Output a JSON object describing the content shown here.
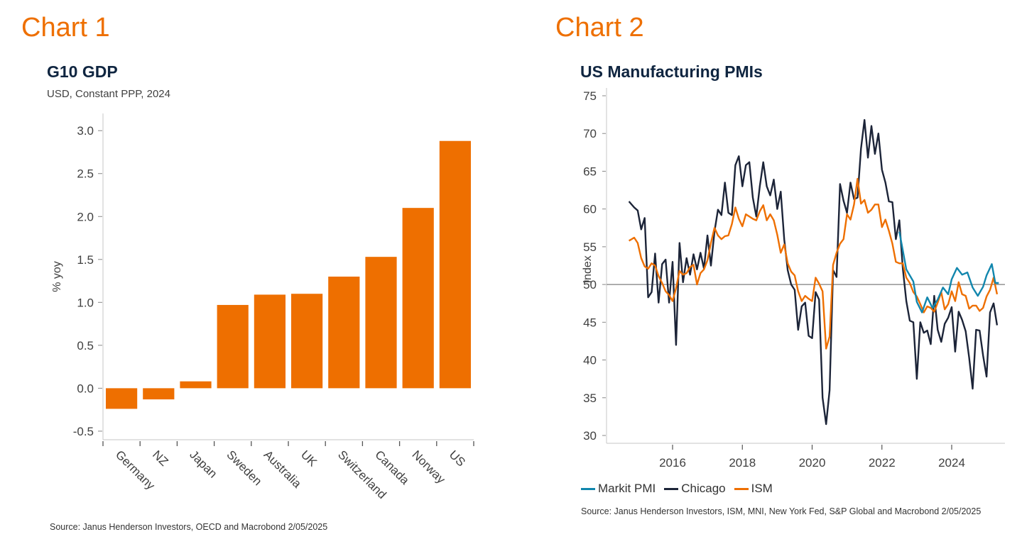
{
  "labels": {
    "chart1": "Chart 1",
    "chart2": "Chart 2"
  },
  "colors": {
    "accent": "#ee6f00",
    "title": "#0f2540",
    "markit": "#1186ad",
    "chicago": "#1c2438",
    "ism": "#ee6f00",
    "axis": "#d0d0d0",
    "zero_line": "#7f7f7f"
  },
  "chart_data": [
    {
      "type": "bar",
      "title": "G10 GDP",
      "subtitle": "USD, Constant PPP, 2024",
      "xlabel": "",
      "ylabel": "% yoy",
      "ylim": [
        -0.6,
        3.2
      ],
      "yticks": [
        -0.5,
        0.0,
        0.5,
        1.0,
        1.5,
        2.0,
        2.5,
        3.0
      ],
      "ytick_labels": [
        "-0.5",
        "0.0",
        "0.5",
        "1.0",
        "1.5",
        "2.0",
        "2.5",
        "3.0"
      ],
      "categories": [
        "Germany",
        "NZ",
        "Japan",
        "Sweden",
        "Australia",
        "UK",
        "Switzerland",
        "Canada",
        "Norway",
        "US"
      ],
      "values": [
        -0.24,
        -0.13,
        0.08,
        0.97,
        1.09,
        1.1,
        1.3,
        1.53,
        2.1,
        2.88
      ],
      "grid": false,
      "legend": "none",
      "source": "Source: Janus Henderson Investors, OECD and Macrobond  2/05/2025"
    },
    {
      "type": "line",
      "title": "US Manufacturing PMIs",
      "xlabel": "",
      "ylabel": "Index",
      "ylim": [
        29,
        76
      ],
      "xlim": [
        2014.75,
        2025.6
      ],
      "yticks": [
        30,
        35,
        40,
        45,
        50,
        55,
        60,
        65,
        70,
        75
      ],
      "xticks": [
        2016,
        2018,
        2020,
        2022,
        2024
      ],
      "xtick_labels": [
        "2016",
        "2018",
        "2020",
        "2022",
        "2024"
      ],
      "reference_line": 50,
      "grid": false,
      "legend": "bottom-left",
      "series": [
        {
          "name": "Markit PMI",
          "color": "#1186ad",
          "x": [
            2022.5,
            2022.7,
            2022.9,
            2023.0,
            2023.15,
            2023.3,
            2023.45,
            2023.6,
            2023.75,
            2023.9,
            2024.0,
            2024.15,
            2024.3,
            2024.45,
            2024.6,
            2024.75,
            2024.9,
            2025.0,
            2025.15,
            2025.25,
            2025.35
          ],
          "values": [
            57.0,
            52.0,
            50.4,
            47.7,
            46.3,
            48.3,
            46.9,
            48.0,
            49.6,
            48.7,
            50.7,
            52.2,
            51.3,
            51.6,
            49.6,
            48.5,
            49.7,
            51.2,
            52.7,
            50.2,
            50.2
          ]
        },
        {
          "name": "Chicago",
          "color": "#1c2438",
          "x": [
            2014.75,
            2014.9,
            2015.0,
            2015.1,
            2015.2,
            2015.3,
            2015.4,
            2015.5,
            2015.6,
            2015.7,
            2015.8,
            2015.9,
            2016.0,
            2016.1,
            2016.2,
            2016.3,
            2016.4,
            2016.5,
            2016.6,
            2016.7,
            2016.8,
            2016.9,
            2017.0,
            2017.1,
            2017.2,
            2017.3,
            2017.4,
            2017.5,
            2017.6,
            2017.7,
            2017.8,
            2017.9,
            2018.0,
            2018.1,
            2018.2,
            2018.3,
            2018.4,
            2018.5,
            2018.6,
            2018.7,
            2018.8,
            2018.9,
            2019.0,
            2019.1,
            2019.2,
            2019.3,
            2019.4,
            2019.5,
            2019.6,
            2019.7,
            2019.8,
            2019.9,
            2020.0,
            2020.1,
            2020.2,
            2020.3,
            2020.4,
            2020.5,
            2020.6,
            2020.7,
            2020.8,
            2020.9,
            2021.0,
            2021.1,
            2021.2,
            2021.3,
            2021.4,
            2021.5,
            2021.6,
            2021.7,
            2021.8,
            2021.9,
            2022.0,
            2022.1,
            2022.2,
            2022.3,
            2022.4,
            2022.5,
            2022.6,
            2022.7,
            2022.8,
            2022.9,
            2023.0,
            2023.1,
            2023.2,
            2023.3,
            2023.4,
            2023.5,
            2023.6,
            2023.7,
            2023.8,
            2023.9,
            2024.0,
            2024.1,
            2024.2,
            2024.3,
            2024.4,
            2024.5,
            2024.6,
            2024.7,
            2024.8,
            2024.9,
            2025.0,
            2025.1,
            2025.2,
            2025.3
          ],
          "values": [
            61.0,
            60.2,
            59.8,
            57.3,
            58.8,
            48.3,
            49.0,
            54.1,
            47.6,
            52.7,
            53.3,
            47.6,
            53.0,
            42.0,
            55.5,
            50.3,
            53.5,
            51.3,
            54.0,
            52.0,
            54.2,
            52.1,
            56.5,
            52.5,
            57.0,
            59.9,
            59.2,
            63.5,
            59.5,
            59.2,
            65.8,
            67.0,
            63.0,
            65.8,
            66.2,
            61.5,
            59.0,
            63.0,
            66.2,
            63.0,
            61.8,
            63.9,
            60.0,
            62.3,
            56.0,
            51.9,
            50.0,
            49.3,
            44.0,
            47.1,
            47.6,
            43.2,
            42.9,
            49.0,
            48.0,
            35.0,
            31.5,
            36.0,
            51.9,
            51.0,
            63.3,
            61.1,
            59.5,
            63.5,
            61.3,
            61.5,
            68.0,
            71.8,
            66.8,
            71.0,
            67.3,
            70.0,
            65.2,
            63.5,
            61.0,
            60.9,
            56.0,
            58.5,
            52.1,
            47.8,
            45.2,
            45.0,
            37.5,
            45.0,
            43.6,
            43.9,
            42.1,
            48.5,
            44.0,
            42.4,
            44.8,
            45.6,
            47.0,
            41.1,
            46.4,
            45.3,
            43.8,
            40.3,
            36.2,
            44.0,
            43.9,
            40.6,
            37.8,
            46.3,
            47.5,
            44.6
          ]
        },
        {
          "name": "ISM",
          "color": "#ee6f00",
          "x": [
            2014.75,
            2014.9,
            2015.0,
            2015.1,
            2015.2,
            2015.3,
            2015.4,
            2015.5,
            2015.6,
            2015.7,
            2015.8,
            2015.9,
            2016.0,
            2016.1,
            2016.2,
            2016.3,
            2016.4,
            2016.5,
            2016.6,
            2016.7,
            2016.8,
            2016.9,
            2017.0,
            2017.1,
            2017.2,
            2017.3,
            2017.4,
            2017.5,
            2017.6,
            2017.7,
            2017.8,
            2017.9,
            2018.0,
            2018.1,
            2018.2,
            2018.3,
            2018.4,
            2018.5,
            2018.6,
            2018.7,
            2018.8,
            2018.9,
            2019.0,
            2019.1,
            2019.2,
            2019.3,
            2019.4,
            2019.5,
            2019.6,
            2019.7,
            2019.8,
            2019.9,
            2020.0,
            2020.1,
            2020.2,
            2020.3,
            2020.4,
            2020.5,
            2020.6,
            2020.7,
            2020.8,
            2020.9,
            2021.0,
            2021.1,
            2021.2,
            2021.3,
            2021.4,
            2021.5,
            2021.6,
            2021.7,
            2021.8,
            2021.9,
            2022.0,
            2022.1,
            2022.2,
            2022.3,
            2022.4,
            2022.5,
            2022.6,
            2022.7,
            2022.8,
            2022.9,
            2023.0,
            2023.1,
            2023.2,
            2023.3,
            2023.4,
            2023.5,
            2023.6,
            2023.7,
            2023.8,
            2023.9,
            2024.0,
            2024.1,
            2024.2,
            2024.3,
            2024.4,
            2024.5,
            2024.6,
            2024.7,
            2024.8,
            2024.9,
            2025.0,
            2025.1,
            2025.2,
            2025.3
          ],
          "values": [
            55.8,
            56.2,
            55.5,
            53.5,
            52.4,
            52.1,
            52.8,
            52.5,
            51.1,
            50.2,
            49.1,
            48.6,
            47.8,
            49.5,
            51.8,
            51.3,
            51.5,
            52.3,
            52.6,
            50.0,
            51.5,
            52.0,
            53.2,
            55.5,
            57.5,
            56.5,
            56.0,
            56.4,
            56.5,
            58.0,
            60.2,
            58.7,
            57.7,
            59.3,
            59.0,
            58.7,
            58.5,
            59.7,
            60.5,
            58.5,
            59.3,
            58.5,
            56.6,
            54.2,
            55.3,
            52.8,
            51.7,
            51.2,
            49.1,
            47.8,
            48.5,
            48.1,
            47.8,
            50.9,
            50.1,
            49.1,
            41.5,
            43.1,
            52.6,
            54.2,
            55.4,
            56.0,
            59.3,
            58.6,
            60.6,
            64.0,
            60.7,
            61.2,
            59.5,
            59.9,
            60.6,
            60.6,
            57.6,
            58.6,
            57.1,
            55.4,
            53.0,
            52.8,
            52.8,
            50.9,
            50.2,
            49.0,
            48.4,
            47.4,
            46.3,
            47.1,
            46.9,
            46.4,
            47.6,
            49.0,
            46.7,
            47.4,
            49.1,
            47.8,
            50.3,
            48.7,
            48.5,
            46.8,
            47.2,
            47.2,
            46.5,
            46.9,
            48.4,
            49.3,
            50.9,
            48.7
          ]
        }
      ],
      "source": "Source: Janus Henderson Investors, ISM, MNI, New York Fed, S&P Global and Macrobond  2/05/2025"
    }
  ]
}
